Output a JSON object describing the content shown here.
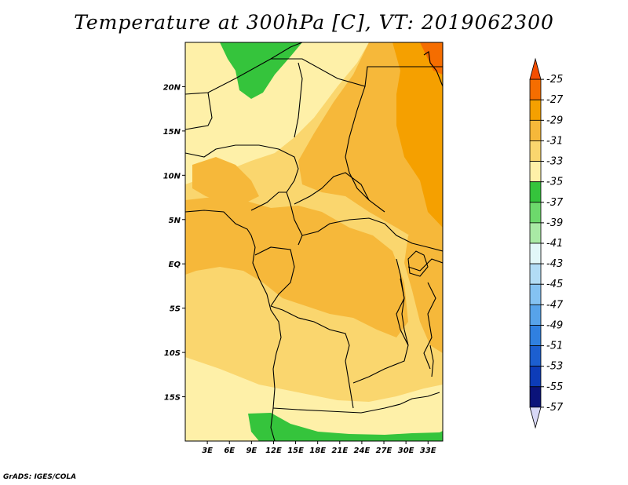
{
  "title": "Temperature at 300hPa [C], VT: 2019062300",
  "credit": "GrADS: IGES/COLA",
  "map": {
    "lon_range": [
      0,
      35
    ],
    "lat_range": [
      -20,
      25
    ],
    "lon_ticks": [
      {
        "value": 3,
        "label": "3E"
      },
      {
        "value": 6,
        "label": "6E"
      },
      {
        "value": 9,
        "label": "9E"
      },
      {
        "value": 12,
        "label": "12E"
      },
      {
        "value": 15,
        "label": "15E"
      },
      {
        "value": 18,
        "label": "18E"
      },
      {
        "value": 21,
        "label": "21E"
      },
      {
        "value": 24,
        "label": "24E"
      },
      {
        "value": 27,
        "label": "27E"
      },
      {
        "value": 30,
        "label": "30E"
      },
      {
        "value": 33,
        "label": "33E"
      }
    ],
    "lat_ticks": [
      {
        "value": 20,
        "label": "20N"
      },
      {
        "value": 15,
        "label": "15N"
      },
      {
        "value": 10,
        "label": "10N"
      },
      {
        "value": 5,
        "label": "5N"
      },
      {
        "value": 0,
        "label": "EQ"
      },
      {
        "value": -5,
        "label": "5S"
      },
      {
        "value": -10,
        "label": "10S"
      },
      {
        "value": -15,
        "label": "15S"
      }
    ]
  },
  "colorbar": {
    "levels": [
      "-25",
      "-27",
      "-29",
      "-31",
      "-33",
      "-35",
      "-37",
      "-39",
      "-41",
      "-43",
      "-45",
      "-47",
      "-49",
      "-51",
      "-53",
      "-55",
      "-57"
    ],
    "colors": [
      "#f44d00",
      "#f56d00",
      "#f5a000",
      "#f6b83a",
      "#fad66e",
      "#fef0a8",
      "#35c43c",
      "#6dd96c",
      "#a9eaa5",
      "#e2f7f8",
      "#b2dcf5",
      "#84c2f2",
      "#57a3ea",
      "#3080e0",
      "#1c5fd0",
      "#0d3cb8",
      "#0b137a",
      "#d8d8f6"
    ]
  },
  "fields": [
    {
      "name": "field-background",
      "color": "#fad66e"
    },
    {
      "name": "field-sahara-pale",
      "color": "#fef0a8"
    },
    {
      "name": "field-northeast-warm",
      "color": "#f6b83a"
    },
    {
      "name": "field-east-hot",
      "color": "#f5a000"
    },
    {
      "name": "field-red-sea-hot",
      "color": "#f56d00"
    },
    {
      "name": "field-central-warm",
      "color": "#f6b83a"
    },
    {
      "name": "field-gulf-warm",
      "color": "#f6b83a"
    },
    {
      "name": "field-lake-warm",
      "color": "#f6b83a"
    },
    {
      "name": "field-south-pale",
      "color": "#fef0a8"
    },
    {
      "name": "field-north-green",
      "color": "#35c43c"
    },
    {
      "name": "field-south-green",
      "color": "#35c43c"
    }
  ]
}
